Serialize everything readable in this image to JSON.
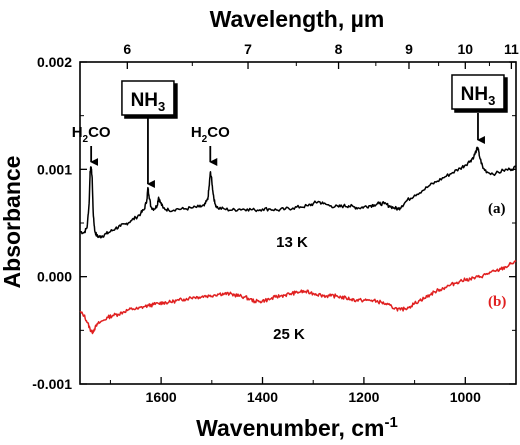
{
  "chart_data": {
    "type": "line",
    "xlabel": "Wavenumber, cm",
    "xlabel_sup": "-1",
    "top_xlabel": "Wavelength, µm",
    "ylabel": "Absorbance",
    "xlim": [
      1760,
      900
    ],
    "ylim": [
      -0.001,
      0.002
    ],
    "x_ticks": [
      {
        "value": 1600,
        "label": "1600"
      },
      {
        "value": 1400,
        "label": "1400"
      },
      {
        "value": 1200,
        "label": "1200"
      },
      {
        "value": 1000,
        "label": "1000"
      }
    ],
    "y_ticks": [
      {
        "value": -0.001,
        "label": "-0.001"
      },
      {
        "value": 0.0,
        "label": "0.000"
      },
      {
        "value": 0.001,
        "label": "0.001"
      },
      {
        "value": 0.002,
        "label": "0.002"
      }
    ],
    "top_ticks": [
      {
        "wavelength": 6,
        "label": "6"
      },
      {
        "wavelength": 7,
        "label": "7"
      },
      {
        "wavelength": 8,
        "label": "8"
      },
      {
        "wavelength": 9,
        "label": "9"
      },
      {
        "wavelength": 10,
        "label": "10"
      },
      {
        "wavelength": 11,
        "label": "11"
      }
    ],
    "series": [
      {
        "id": "a",
        "color": "#000000",
        "curve_label": "(a)",
        "temperature": "13 K",
        "points": [
          [
            1760,
            0.00042
          ],
          [
            1752,
            0.00041
          ],
          [
            1746,
            0.00046
          ],
          [
            1742,
            0.00068
          ],
          [
            1740,
            0.00098
          ],
          [
            1738,
            0.00102
          ],
          [
            1736,
            0.00092
          ],
          [
            1734,
            0.0006
          ],
          [
            1731,
            0.00043
          ],
          [
            1727,
            0.00038
          ],
          [
            1722,
            0.00037
          ],
          [
            1716,
            0.00038
          ],
          [
            1708,
            0.0004
          ],
          [
            1700,
            0.00042
          ],
          [
            1690,
            0.00045
          ],
          [
            1680,
            0.00047
          ],
          [
            1670,
            0.00049
          ],
          [
            1660,
            0.00052
          ],
          [
            1650,
            0.00055
          ],
          [
            1640,
            0.00059
          ],
          [
            1633,
            0.00063
          ],
          [
            1628,
            0.00072
          ],
          [
            1626,
            0.00083
          ],
          [
            1624,
            0.00076
          ],
          [
            1620,
            0.00065
          ],
          [
            1614,
            0.00063
          ],
          [
            1608,
            0.00066
          ],
          [
            1605,
            0.00074
          ],
          [
            1602,
            0.0007
          ],
          [
            1596,
            0.00064
          ],
          [
            1585,
            0.00062
          ],
          [
            1570,
            0.00063
          ],
          [
            1555,
            0.00063
          ],
          [
            1540,
            0.00064
          ],
          [
            1525,
            0.00065
          ],
          [
            1515,
            0.00066
          ],
          [
            1508,
            0.00072
          ],
          [
            1505,
            0.00085
          ],
          [
            1503,
            0.00097
          ],
          [
            1501,
            0.00093
          ],
          [
            1498,
            0.0008
          ],
          [
            1494,
            0.00068
          ],
          [
            1488,
            0.00064
          ],
          [
            1475,
            0.00063
          ],
          [
            1460,
            0.00062
          ],
          [
            1445,
            0.00063
          ],
          [
            1430,
            0.00063
          ],
          [
            1415,
            0.00062
          ],
          [
            1400,
            0.00063
          ],
          [
            1385,
            0.00063
          ],
          [
            1370,
            0.00062
          ],
          [
            1355,
            0.00063
          ],
          [
            1340,
            0.00064
          ],
          [
            1325,
            0.00065
          ],
          [
            1310,
            0.00066
          ],
          [
            1300,
            0.00068
          ],
          [
            1290,
            0.0007
          ],
          [
            1280,
            0.00068
          ],
          [
            1265,
            0.00066
          ],
          [
            1250,
            0.00065
          ],
          [
            1240,
            0.00066
          ],
          [
            1230,
            0.00066
          ],
          [
            1220,
            0.00065
          ],
          [
            1210,
            0.00064
          ],
          [
            1200,
            0.00065
          ],
          [
            1190,
            0.00066
          ],
          [
            1180,
            0.00067
          ],
          [
            1170,
            0.00068
          ],
          [
            1160,
            0.00068
          ],
          [
            1150,
            0.00066
          ],
          [
            1140,
            0.00064
          ],
          [
            1132,
            0.00063
          ],
          [
            1125,
            0.00066
          ],
          [
            1115,
            0.00071
          ],
          [
            1100,
            0.00076
          ],
          [
            1085,
            0.0008
          ],
          [
            1070,
            0.00085
          ],
          [
            1055,
            0.00089
          ],
          [
            1040,
            0.00093
          ],
          [
            1025,
            0.00097
          ],
          [
            1010,
            0.00101
          ],
          [
            1000,
            0.00104
          ],
          [
            990,
            0.00108
          ],
          [
            983,
            0.00112
          ],
          [
            978,
            0.00118
          ],
          [
            975,
            0.0012
          ],
          [
            972,
            0.00112
          ],
          [
            965,
            0.00101
          ],
          [
            955,
            0.00097
          ],
          [
            940,
            0.00096
          ],
          [
            925,
            0.00099
          ],
          [
            912,
            0.001
          ],
          [
            900,
            0.00102
          ]
        ]
      },
      {
        "id": "b",
        "color": "#e02020",
        "curve_label": "(b)",
        "temperature": "25 K",
        "points": [
          [
            1760,
            -0.00033
          ],
          [
            1752,
            -0.00036
          ],
          [
            1745,
            -0.00043
          ],
          [
            1740,
            -0.00049
          ],
          [
            1736,
            -0.00052
          ],
          [
            1732,
            -0.00049
          ],
          [
            1725,
            -0.00044
          ],
          [
            1715,
            -0.00041
          ],
          [
            1705,
            -0.00038
          ],
          [
            1695,
            -0.00036
          ],
          [
            1685,
            -0.00035
          ],
          [
            1675,
            -0.00033
          ],
          [
            1665,
            -0.00031
          ],
          [
            1655,
            -0.0003
          ],
          [
            1645,
            -0.0003
          ],
          [
            1635,
            -0.00028
          ],
          [
            1625,
            -0.00027
          ],
          [
            1615,
            -0.00026
          ],
          [
            1605,
            -0.00025
          ],
          [
            1595,
            -0.00024
          ],
          [
            1585,
            -0.00024
          ],
          [
            1575,
            -0.00023
          ],
          [
            1565,
            -0.00022
          ],
          [
            1555,
            -0.00021
          ],
          [
            1545,
            -0.0002
          ],
          [
            1535,
            -0.00019
          ],
          [
            1525,
            -0.00019
          ],
          [
            1515,
            -0.00018
          ],
          [
            1505,
            -0.00018
          ],
          [
            1495,
            -0.00017
          ],
          [
            1485,
            -0.00016
          ],
          [
            1475,
            -0.00016
          ],
          [
            1465,
            -0.00016
          ],
          [
            1455,
            -0.00017
          ],
          [
            1445,
            -0.00018
          ],
          [
            1435,
            -0.00019
          ],
          [
            1425,
            -0.00021
          ],
          [
            1415,
            -0.00023
          ],
          [
            1405,
            -0.00023
          ],
          [
            1395,
            -0.00022
          ],
          [
            1385,
            -0.00021
          ],
          [
            1375,
            -0.00019
          ],
          [
            1365,
            -0.00018
          ],
          [
            1355,
            -0.00017
          ],
          [
            1345,
            -0.00016
          ],
          [
            1335,
            -0.00015
          ],
          [
            1325,
            -0.00014
          ],
          [
            1315,
            -0.00014
          ],
          [
            1305,
            -0.00015
          ],
          [
            1295,
            -0.00016
          ],
          [
            1285,
            -0.00017
          ],
          [
            1275,
            -0.00018
          ],
          [
            1265,
            -0.00018
          ],
          [
            1255,
            -0.00018
          ],
          [
            1245,
            -0.00019
          ],
          [
            1235,
            -0.0002
          ],
          [
            1225,
            -0.00021
          ],
          [
            1215,
            -0.00022
          ],
          [
            1205,
            -0.00022
          ],
          [
            1195,
            -0.00022
          ],
          [
            1185,
            -0.00022
          ],
          [
            1175,
            -0.00023
          ],
          [
            1165,
            -0.00024
          ],
          [
            1155,
            -0.00026
          ],
          [
            1145,
            -0.00028
          ],
          [
            1135,
            -0.0003
          ],
          [
            1128,
            -0.00031
          ],
          [
            1120,
            -0.0003
          ],
          [
            1110,
            -0.00028
          ],
          [
            1100,
            -0.00025
          ],
          [
            1090,
            -0.00022
          ],
          [
            1080,
            -0.0002
          ],
          [
            1070,
            -0.00017
          ],
          [
            1060,
            -0.00014
          ],
          [
            1050,
            -0.00012
          ],
          [
            1040,
            -0.0001
          ],
          [
            1030,
            -8e-05
          ],
          [
            1020,
            -6e-05
          ],
          [
            1010,
            -4e-05
          ],
          [
            1000,
            -3e-05
          ],
          [
            990,
            -2e-05
          ],
          [
            980,
            -1e-05
          ],
          [
            970,
            0.0
          ],
          [
            960,
            2e-05
          ],
          [
            950,
            4e-05
          ],
          [
            940,
            5e-05
          ],
          [
            930,
            7e-05
          ],
          [
            920,
            9e-05
          ],
          [
            910,
            0.00012
          ],
          [
            900,
            0.00014
          ]
        ]
      }
    ],
    "annotations": [
      {
        "id": "h2co-1",
        "base": "H",
        "sub": "2",
        "rest": "CO",
        "x": 1738,
        "boxed": false
      },
      {
        "id": "nh3-1",
        "base": "NH",
        "sub": "3",
        "rest": "",
        "x": 1626,
        "boxed": true
      },
      {
        "id": "h2co-2",
        "base": "H",
        "sub": "2",
        "rest": "CO",
        "x": 1503,
        "boxed": false
      },
      {
        "id": "nh3-2",
        "base": "NH",
        "sub": "3",
        "rest": "",
        "x": 975,
        "boxed": true
      }
    ]
  }
}
